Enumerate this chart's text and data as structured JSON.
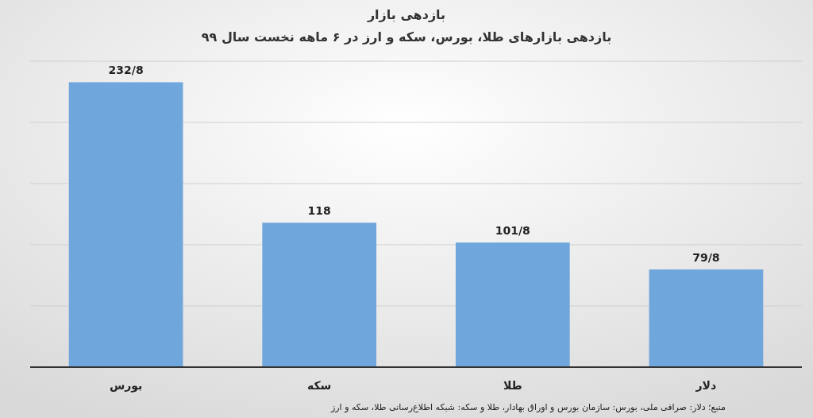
{
  "chart_data": {
    "type": "bar",
    "title": "بازدهی بازار",
    "subtitle": "بازدهی بازارهای طلا، بورس، سکه و ارز در ۶ ماهه نخست سال ۹۹",
    "categories": [
      "بورس",
      "سکه",
      "طلا",
      "دلار"
    ],
    "values": [
      232.8,
      118,
      101.8,
      79.8
    ],
    "value_labels": [
      "232/8",
      "118",
      "101/8",
      "79/8"
    ],
    "color": "#6fa6dc",
    "ylim": [
      0,
      250
    ],
    "yticks": [
      {
        "value": 0,
        "label": null
      },
      {
        "value": 50,
        "label": null
      },
      {
        "value": 100,
        "label": null
      },
      {
        "value": 150,
        "label": null
      },
      {
        "value": 200,
        "label": null
      },
      {
        "value": 250,
        "label": null
      }
    ],
    "tick_labels": "x",
    "grid": "y",
    "annotations": [
      "منبع؛ دلار: صرافی ملی، بورس: سازمان بورس و اوراق بهادار، طلا و سکه: شبکه اطلاع‌رسانی طلا، سکه و ارز"
    ]
  }
}
